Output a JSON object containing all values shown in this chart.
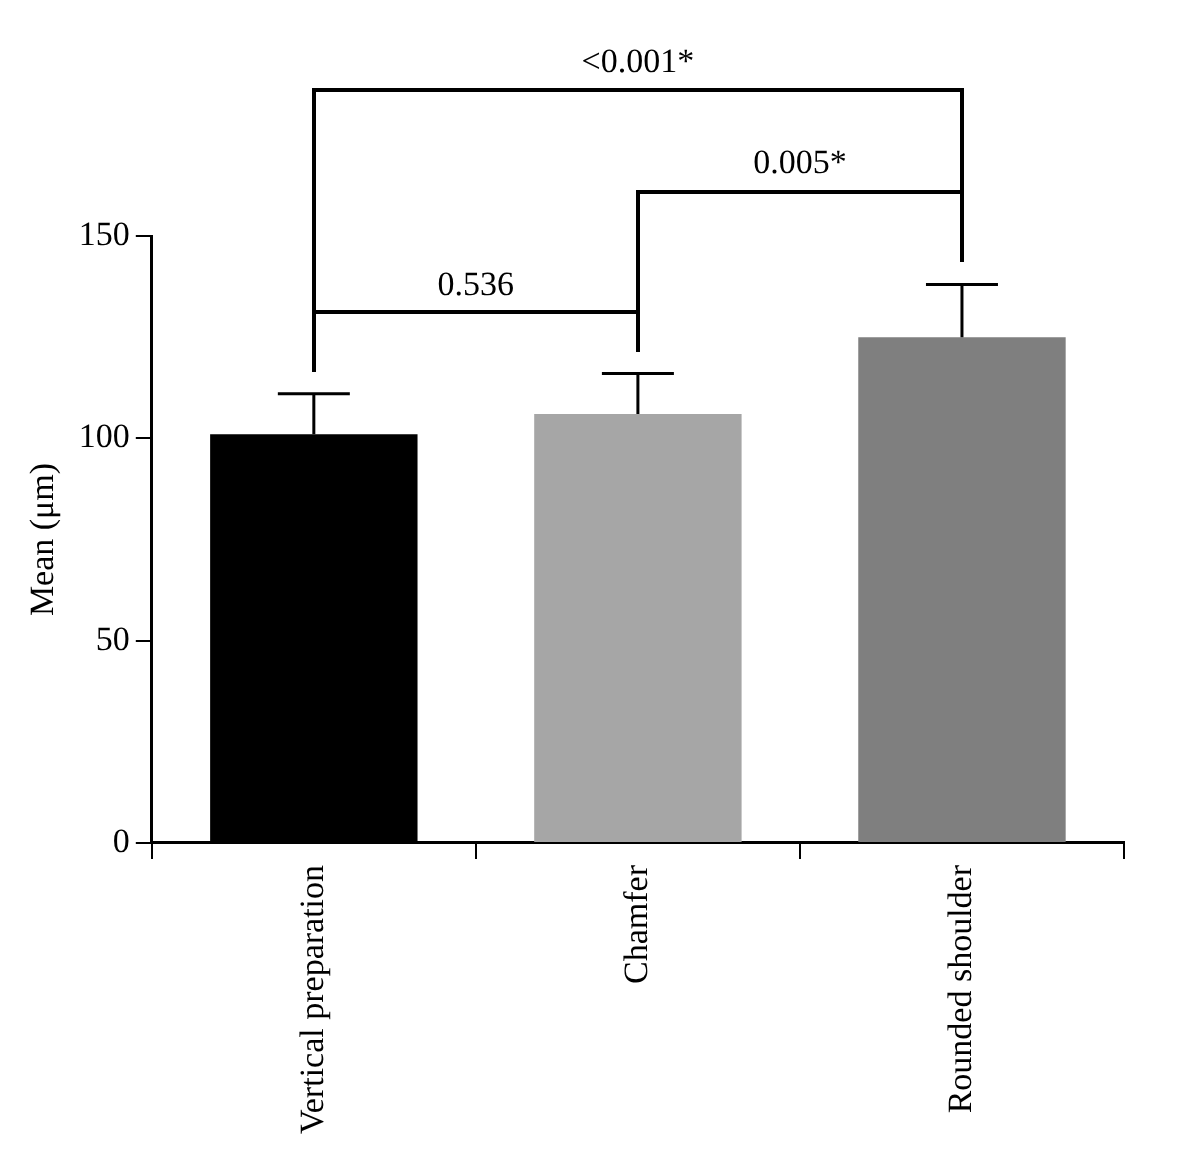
{
  "chart_data": {
    "type": "bar",
    "ylabel": "Mean (μm)",
    "categories": [
      "Vertical preparation",
      "Chamfer",
      "Rounded shoulder"
    ],
    "values": [
      101,
      106,
      125
    ],
    "colors": [
      "#000000",
      "#a6a6a6",
      "#7f7f7f"
    ],
    "errors": [
      [
        101,
        111
      ],
      [
        106,
        116
      ],
      [
        125,
        138
      ]
    ],
    "ylim": [
      0,
      150
    ],
    "yticks": [
      0,
      50,
      100,
      150
    ],
    "grid": false,
    "annotations": [
      "0.536",
      "0.005*",
      "<0.001*"
    ]
  }
}
